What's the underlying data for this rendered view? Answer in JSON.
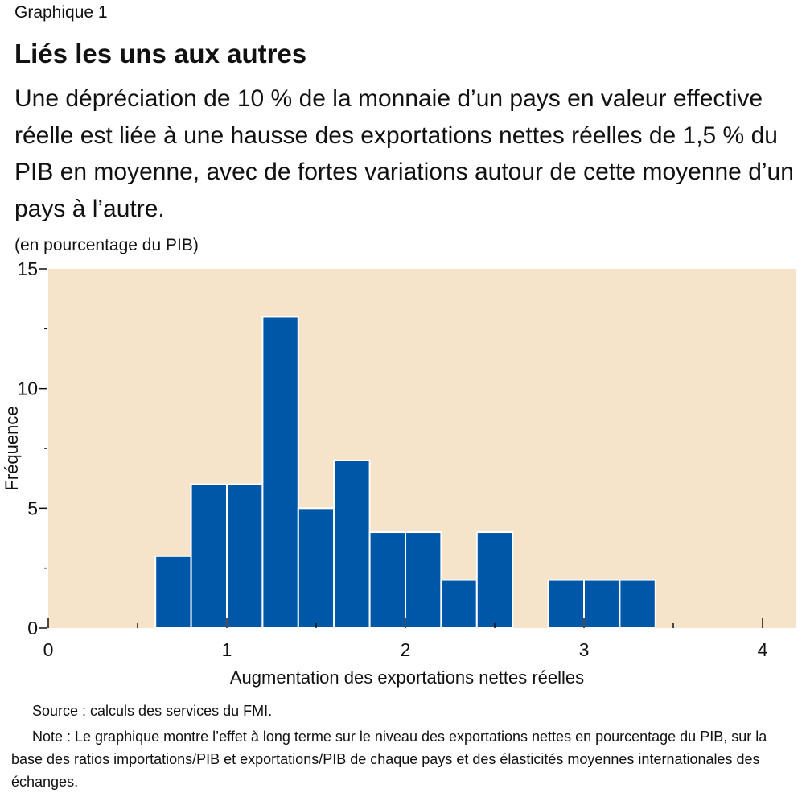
{
  "header": {
    "graph_label": "Graphique 1",
    "title": "Liés les uns aux autres",
    "subtitle": "Une dépréciation de 10 % de la monnaie d’un pays en valeur effective réelle est liée à une hausse des exportations nettes réelles de 1,5 % du PIB en moyenne, avec de fortes variations autour de cette moyenne d’un pays à l’autre.",
    "unit_note": "(en pourcentage du PIB)"
  },
  "chart_data": {
    "type": "bar",
    "xlabel": "Augmentation des exportations nettes réelles",
    "ylabel": "Fréquence",
    "xlim": [
      0,
      4.2
    ],
    "ylim": [
      0,
      15
    ],
    "x_ticks": [
      0,
      1,
      2,
      3,
      4
    ],
    "y_ticks": [
      0,
      5,
      10,
      15
    ],
    "bin_width": 0.2,
    "bins": [
      {
        "start": 0.6,
        "count": 3
      },
      {
        "start": 0.8,
        "count": 6
      },
      {
        "start": 1.0,
        "count": 6
      },
      {
        "start": 1.2,
        "count": 13
      },
      {
        "start": 1.4,
        "count": 5
      },
      {
        "start": 1.6,
        "count": 7
      },
      {
        "start": 1.8,
        "count": 4
      },
      {
        "start": 2.0,
        "count": 4
      },
      {
        "start": 2.2,
        "count": 2
      },
      {
        "start": 2.4,
        "count": 4
      },
      {
        "start": 2.8,
        "count": 2
      },
      {
        "start": 3.0,
        "count": 2
      },
      {
        "start": 3.2,
        "count": 2
      }
    ],
    "colors": {
      "bar": "#0057A8",
      "background": "#F5E4C9",
      "bar_edge": "#ffffff"
    },
    "grid": false
  },
  "footer": {
    "source": "Source : calculs des services du FMI.",
    "note": "Note : Le graphique montre l’effet à long terme sur le niveau des exportations nettes en pourcentage du PIB, sur la base des ratios importations/PIB et exportations/PIB de chaque pays et des élasticités moyennes internationales des échanges."
  }
}
